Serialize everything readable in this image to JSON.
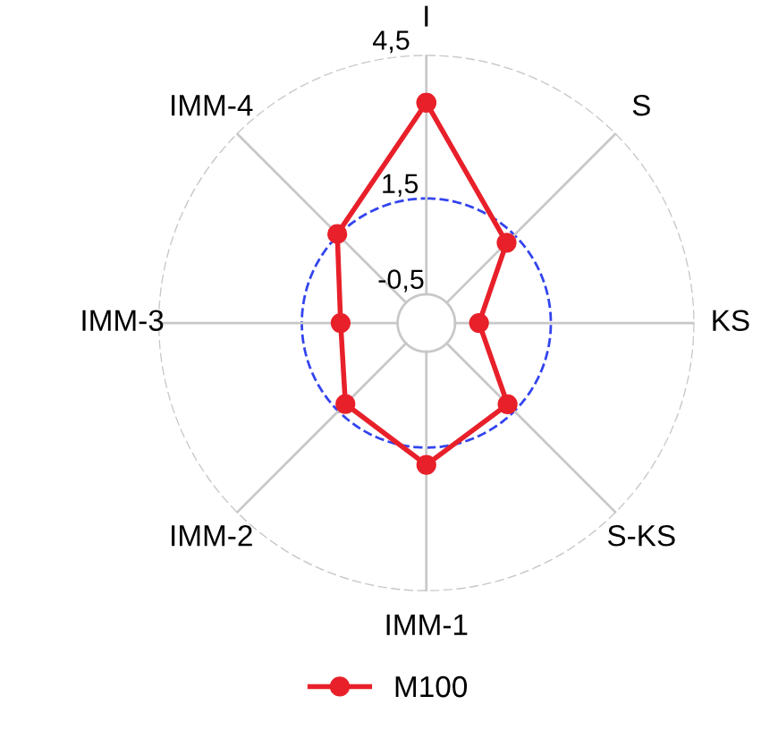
{
  "chart_data": {
    "type": "radar",
    "categories": [
      "I",
      "S",
      "KS",
      "S-KS",
      "IMM-1",
      "IMM-2",
      "IMM-3",
      "IMM-4"
    ],
    "series": [
      {
        "name": "M100",
        "color": "#e8202a",
        "values": [
          3.5,
          1.27,
          0.0,
          1.3,
          1.86,
          1.29,
          0.69,
          1.53
        ]
      }
    ],
    "ylim": [
      -1.1,
      4.5
    ],
    "yticks": [
      {
        "value": -0.5,
        "label": "-0,5"
      },
      {
        "value": 1.5,
        "label": "1,5"
      },
      {
        "value": 4.5,
        "label": "4,5"
      }
    ],
    "grid": true,
    "legend": "bottom",
    "marker": "circle",
    "line_style": "solid"
  }
}
